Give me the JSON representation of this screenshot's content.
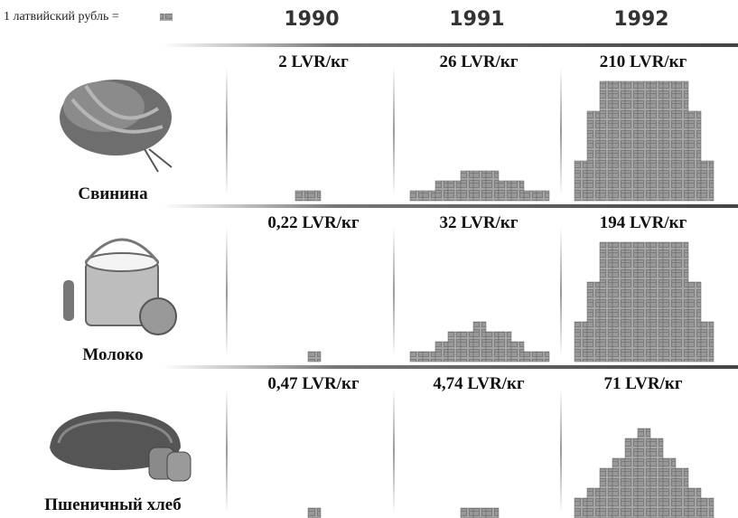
{
  "chart_data": {
    "type": "pictogram",
    "legend_label": "1 латвийский рубль =",
    "categories": [
      "1990",
      "1991",
      "1992"
    ],
    "color": "#8a8a8a",
    "series": [
      {
        "name": "Свинина",
        "values": [
          2,
          26,
          210
        ],
        "value_labels": [
          "2 LVR/кг",
          "26 LVR/кг",
          "210 LVR/кг"
        ]
      },
      {
        "name": "Молоко",
        "values": [
          0.22,
          32,
          194
        ],
        "value_labels": [
          "0,22 LVR/кг",
          "32 LVR/кг",
          "194 LVR/кг"
        ]
      },
      {
        "name": "Пшеничный хлеб",
        "values": [
          0.47,
          4.74,
          71
        ],
        "value_labels": [
          "0,47 LVR/кг",
          "4,74 LVR/кг",
          "71 LVR/кг"
        ]
      }
    ]
  }
}
